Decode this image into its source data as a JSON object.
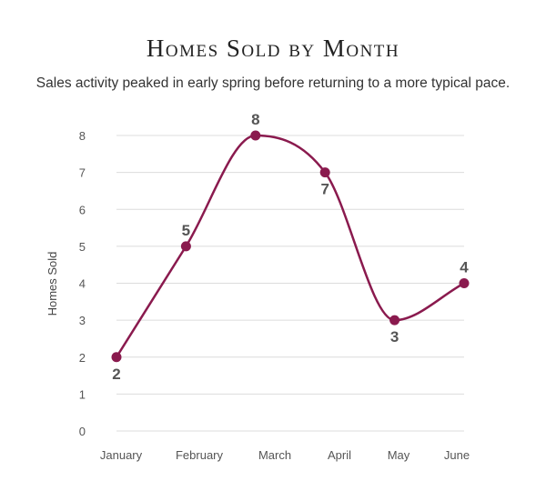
{
  "chart_data": {
    "type": "line",
    "title": "Homes Sold by Month",
    "subtitle": "Sales activity peaked in early spring before returning to a more typical pace.",
    "xlabel": "",
    "ylabel": "Homes Sold",
    "categories": [
      "January",
      "February",
      "March",
      "April",
      "May",
      "June"
    ],
    "series": [
      {
        "values": [
          2,
          5,
          8,
          7,
          3,
          4
        ]
      }
    ],
    "ylim": [
      0,
      8
    ],
    "yticks": [
      0,
      1,
      2,
      3,
      4,
      5,
      6,
      7,
      8
    ],
    "grid": true,
    "smooth": true,
    "data_labels": true,
    "legend": "none"
  },
  "colors": {
    "series": "#8a1a4e",
    "grid": "#dcdcdc"
  }
}
